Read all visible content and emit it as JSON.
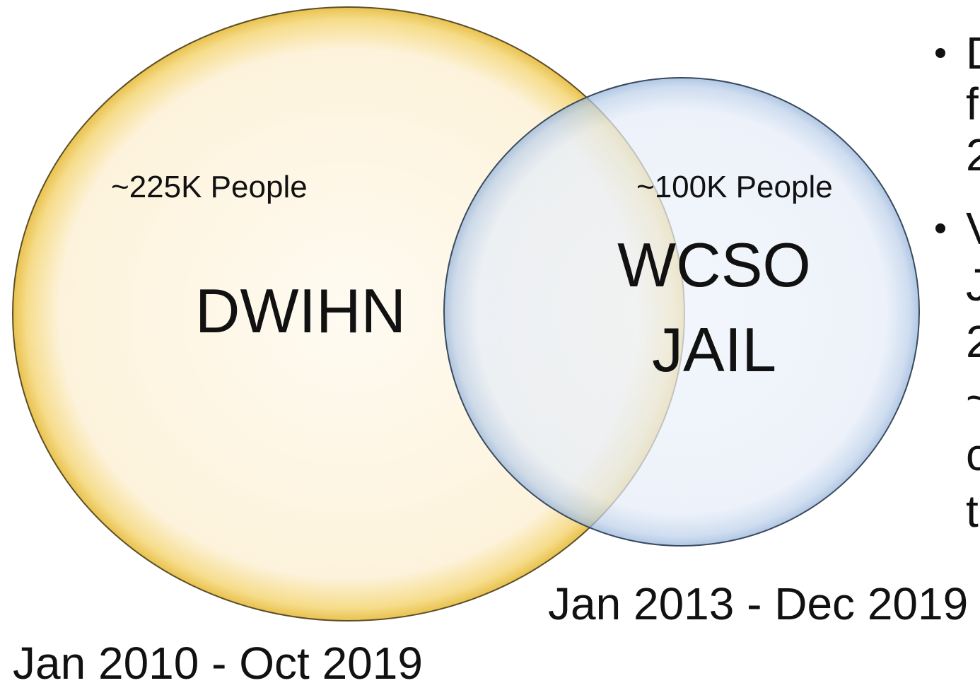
{
  "left_set": {
    "name": "DWIHN",
    "count_label": "~225K People",
    "date_range": "Jan 2010 - Oct 2019"
  },
  "right_set": {
    "name_lines": [
      "WCSO",
      "JAIL"
    ],
    "count_label": "~100K People",
    "date_range": "Jan 2013 - Dec 2019"
  },
  "bullets": [
    {
      "lines": [
        "D",
        "f",
        "2"
      ]
    },
    {
      "lines": [
        "V",
        "J",
        "2",
        "~",
        "c",
        "t"
      ]
    }
  ]
}
